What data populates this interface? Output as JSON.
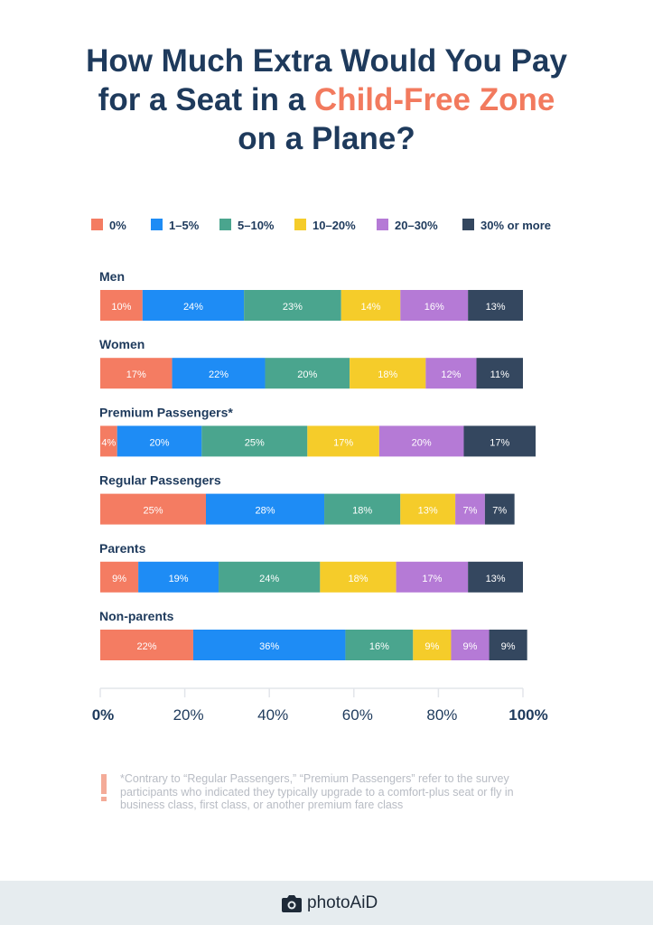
{
  "title": {
    "line1": "How Much Extra Would You Pay",
    "line2_pre": "for a Seat in a ",
    "line2_highlight": "Child-Free Zone",
    "line3": "on a Plane?"
  },
  "colors": {
    "title": "#1e3a5c",
    "highlight": "#f27a5e"
  },
  "chart_data": {
    "type": "bar",
    "orientation": "horizontal",
    "stacked": true,
    "categories": [
      "Men",
      "Women",
      "Premium Passengers*",
      "Regular Passengers",
      "Parents",
      "Non-parents"
    ],
    "series": [
      {
        "name": "0%",
        "color": "#f47c62",
        "values": [
          10,
          17,
          4,
          25,
          9,
          22
        ]
      },
      {
        "name": "1–5%",
        "color": "#1e8cf5",
        "values": [
          24,
          22,
          20,
          28,
          19,
          36
        ]
      },
      {
        "name": "5–10%",
        "color": "#4aa58e",
        "values": [
          23,
          20,
          25,
          18,
          24,
          16
        ]
      },
      {
        "name": "10–20%",
        "color": "#f5cc2a",
        "values": [
          14,
          18,
          17,
          13,
          18,
          9
        ]
      },
      {
        "name": "20–30%",
        "color": "#b57ad6",
        "values": [
          16,
          12,
          20,
          7,
          17,
          9
        ]
      },
      {
        "name": "30% or more",
        "color": "#34475f",
        "values": [
          13,
          11,
          17,
          7,
          13,
          9
        ]
      }
    ],
    "xlim": [
      0,
      100
    ],
    "xticks": [
      "0%",
      "20%",
      "40%",
      "60%",
      "80%",
      "100%"
    ],
    "legend": "top",
    "grid": false
  },
  "note": "*Contrary to “Regular Passengers,” “Premium Passengers” refer to the survey participants who indicated they typically upgrade to a comfort-plus seat or fly in business class, first class, or another premium fare class",
  "footer": {
    "brand": "photoAiD"
  }
}
